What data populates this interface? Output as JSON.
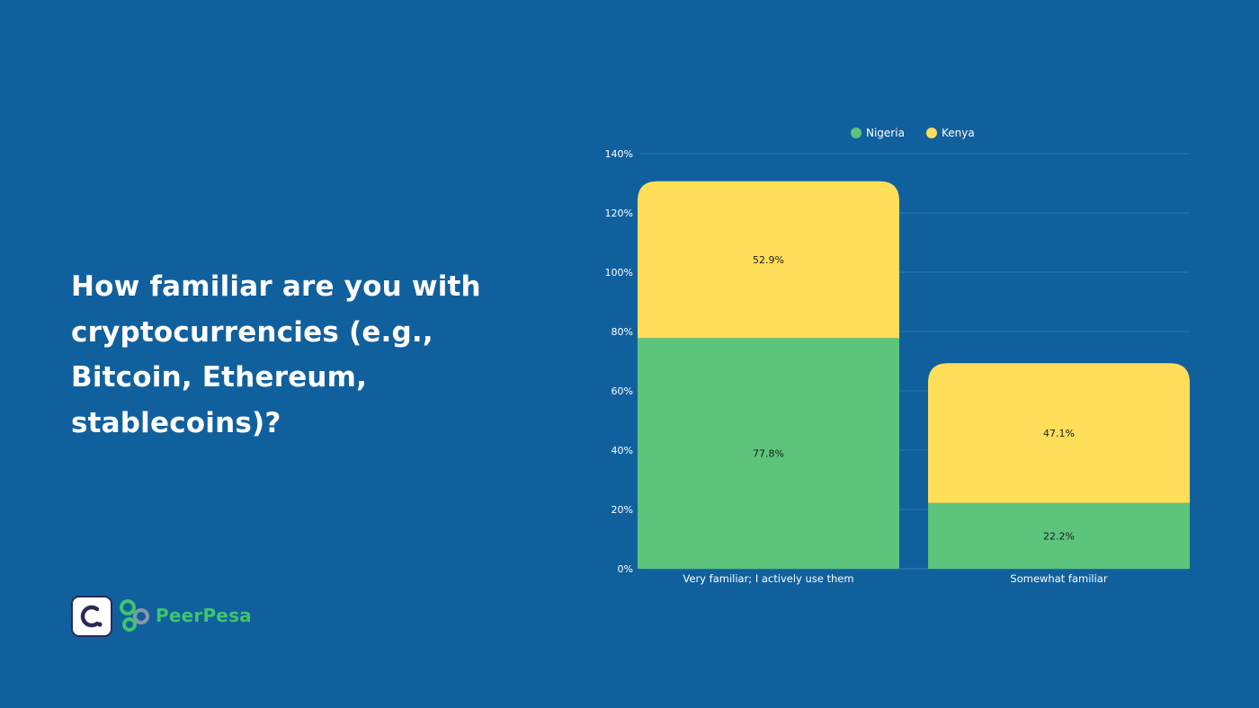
{
  "question": "How familiar are you with cryptocurrencies (e.g., Bitcoin, Ethereum, stablecoins)?",
  "brand": {
    "name": "PeerPesa",
    "logo_icon": "c-badge-icon",
    "mark_icon": "peerpesa-link-icon"
  },
  "colors": {
    "background": "#11609e",
    "nigeria": "#5dc47b",
    "kenya": "#ffde5a",
    "brand": "#3fc46f"
  },
  "chart_data": {
    "type": "bar",
    "stacked": true,
    "categories": [
      "Very familiar; I actively use them",
      "Somewhat familiar"
    ],
    "series": [
      {
        "name": "Nigeria",
        "values": [
          77.8,
          22.2
        ],
        "labels": [
          "77.8%",
          "22.2%"
        ],
        "color": "#5dc47b"
      },
      {
        "name": "Kenya",
        "values": [
          52.9,
          47.1
        ],
        "labels": [
          "52.9%",
          "47.1%"
        ],
        "color": "#ffde5a"
      }
    ],
    "ylim": [
      0,
      140
    ],
    "yticks": [
      0,
      20,
      40,
      60,
      80,
      100,
      120,
      140
    ],
    "ytick_labels": [
      "0%",
      "20%",
      "40%",
      "60%",
      "80%",
      "100%",
      "120%",
      "140%"
    ],
    "grid": true,
    "legend": "top-center"
  }
}
